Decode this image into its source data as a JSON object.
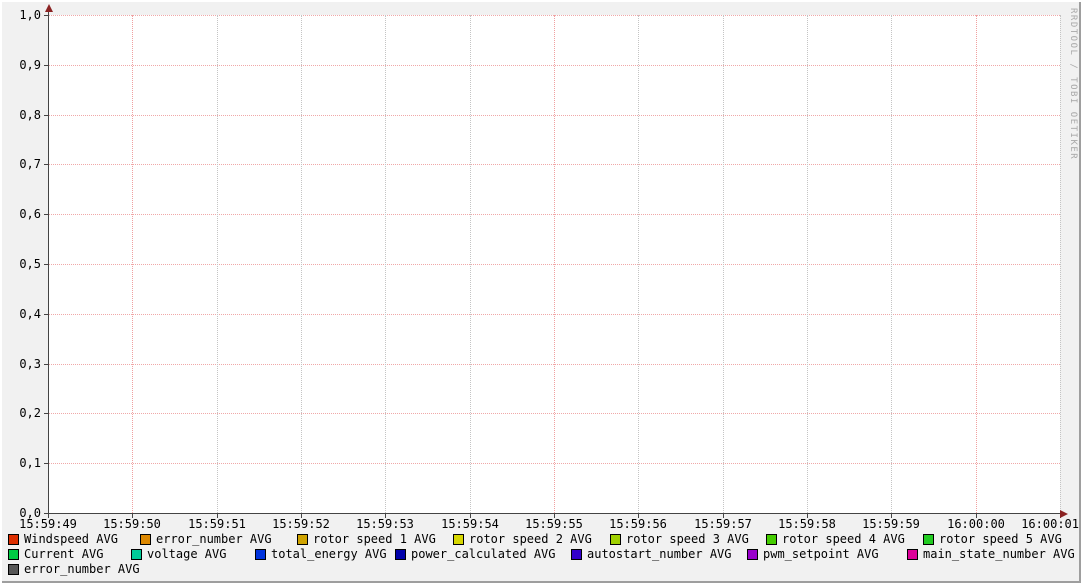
{
  "watermark": "RRDTOOL / TOBI OETIKER",
  "colors": {
    "background": "#f1f1f1",
    "canvas": "#ffffff",
    "axis": "#444444",
    "arrow": "#8b2323",
    "grid_major": "#f0a0a0",
    "grid_minor": "#c4c4c4",
    "border_light": "#ffffff",
    "border_dark": "#9e9e9e"
  },
  "chart_data": {
    "type": "line",
    "title": "",
    "xlabel": "",
    "ylabel": "",
    "ylim": [
      0.0,
      1.0
    ],
    "grid": "on",
    "legend_position": "bottom",
    "x_range": [
      "15:59:49",
      "16:00:01"
    ],
    "y_ticks": [
      {
        "label": "1,0",
        "value": 1.0
      },
      {
        "label": "0,9",
        "value": 0.9
      },
      {
        "label": "0,8",
        "value": 0.8
      },
      {
        "label": "0,7",
        "value": 0.7
      },
      {
        "label": "0,6",
        "value": 0.6
      },
      {
        "label": "0,5",
        "value": 0.5
      },
      {
        "label": "0,4",
        "value": 0.4
      },
      {
        "label": "0,3",
        "value": 0.3
      },
      {
        "label": "0,2",
        "value": 0.2
      },
      {
        "label": "0,1",
        "value": 0.1
      },
      {
        "label": "0,0",
        "value": 0.0
      }
    ],
    "x_ticks": [
      {
        "label": "15:59:49",
        "major": false
      },
      {
        "label": "15:59:50",
        "major": true
      },
      {
        "label": "15:59:51",
        "major": false
      },
      {
        "label": "15:59:52",
        "major": false
      },
      {
        "label": "15:59:53",
        "major": false
      },
      {
        "label": "15:59:54",
        "major": false
      },
      {
        "label": "15:59:55",
        "major": true
      },
      {
        "label": "15:59:56",
        "major": false
      },
      {
        "label": "15:59:57",
        "major": false
      },
      {
        "label": "15:59:58",
        "major": false
      },
      {
        "label": "15:59:59",
        "major": false
      },
      {
        "label": "16:00:00",
        "major": true
      },
      {
        "label": "16:00:01",
        "major": false
      }
    ],
    "series": [
      {
        "name": "Windspeed AVG",
        "color": "#dd2f00",
        "values": []
      },
      {
        "name": "error_number AVG",
        "color": "#dd8800",
        "values": []
      },
      {
        "name": "rotor speed 1 AVG",
        "color": "#cfa300",
        "values": []
      },
      {
        "name": "rotor speed 2 AVG",
        "color": "#d6d600",
        "values": []
      },
      {
        "name": "rotor speed 3 AVG",
        "color": "#a0d000",
        "values": []
      },
      {
        "name": "rotor speed 4 AVG",
        "color": "#44cc00",
        "values": []
      },
      {
        "name": "rotor speed 5 AVG",
        "color": "#22cc22",
        "values": []
      },
      {
        "name": "Current AVG",
        "color": "#00cc44",
        "values": []
      },
      {
        "name": "voltage AVG",
        "color": "#00cc99",
        "values": []
      },
      {
        "name": "total_energy AVG",
        "color": "#0033dd",
        "values": []
      },
      {
        "name": "power_calculated AVG",
        "color": "#0000aa",
        "values": []
      },
      {
        "name": "autostart_number AVG",
        "color": "#3300cc",
        "values": []
      },
      {
        "name": "pwm_setpoint AVG",
        "color": "#9900cc",
        "values": []
      },
      {
        "name": "main_state_number AVG",
        "color": "#dd0099",
        "values": []
      },
      {
        "name": "error_number AVG",
        "color": "#555555",
        "values": []
      }
    ]
  },
  "legend": {
    "rows": [
      {
        "items": [
          {
            "label": "Windspeed AVG",
            "color": "#dd2f00"
          },
          {
            "label": "error_number AVG",
            "color": "#dd8800"
          },
          {
            "label": "rotor speed 1 AVG",
            "color": "#cfa300"
          },
          {
            "label": "rotor speed 2 AVG",
            "color": "#d6d600"
          },
          {
            "label": "rotor speed 3 AVG",
            "color": "#a0d000"
          },
          {
            "label": "rotor speed 4 AVG",
            "color": "#44cc00"
          },
          {
            "label": "rotor speed 5 AVG",
            "color": "#22cc22"
          }
        ]
      },
      {
        "items": [
          {
            "label": "Current AVG",
            "color": "#00cc44"
          },
          {
            "label": "voltage AVG",
            "color": "#00cc99"
          },
          {
            "label": "total_energy AVG",
            "color": "#0033dd"
          },
          {
            "label": "power_calculated AVG",
            "color": "#0000aa"
          },
          {
            "label": "autostart_number AVG",
            "color": "#3300cc"
          },
          {
            "label": "pwm_setpoint AVG",
            "color": "#9900cc"
          },
          {
            "label": "main_state_number AVG",
            "color": "#dd0099"
          }
        ]
      },
      {
        "items": [
          {
            "label": "error_number AVG",
            "color": "#555555"
          }
        ]
      }
    ]
  }
}
